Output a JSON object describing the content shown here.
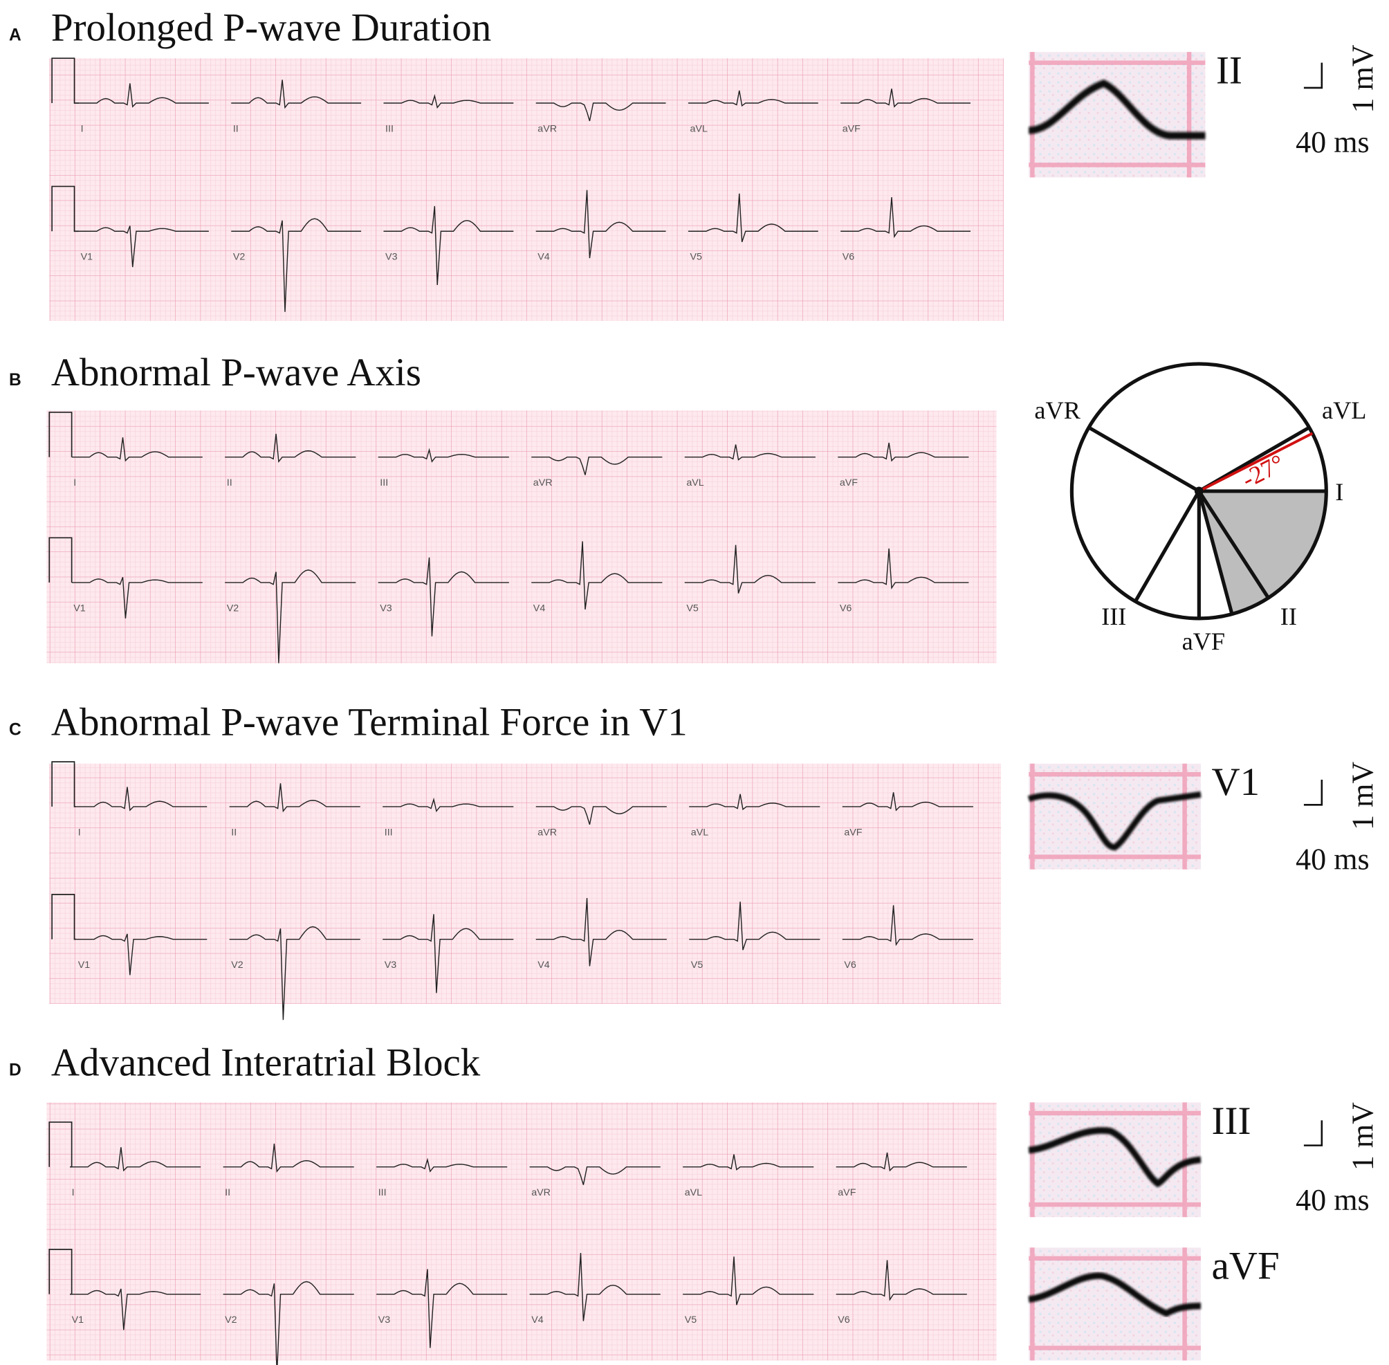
{
  "panels": [
    {
      "letter": "A",
      "title": "Prolonged P-wave Duration",
      "leads": [
        "I",
        "II",
        "III",
        "aVR",
        "aVL",
        "aVF",
        "V1",
        "V2",
        "V3",
        "V4",
        "V5",
        "V6"
      ],
      "insets": [
        {
          "label": "II"
        }
      ],
      "scale_vertical": "1 mV",
      "scale_horizontal": "40 ms"
    },
    {
      "letter": "B",
      "title": "Abnormal P-wave Axis",
      "leads": [
        "I",
        "II",
        "III",
        "aVR",
        "aVL",
        "aVF",
        "V1",
        "V2",
        "V3",
        "V4",
        "V5",
        "V6"
      ],
      "axis": {
        "leads": [
          "aVR",
          "aVL",
          "I",
          "II",
          "aVF",
          "III"
        ],
        "angle": "-27°"
      }
    },
    {
      "letter": "C",
      "title": "Abnormal P-wave Terminal Force in V1",
      "leads": [
        "I",
        "II",
        "III",
        "aVR",
        "aVL",
        "aVF",
        "V1",
        "V2",
        "V3",
        "V4",
        "V5",
        "V6"
      ],
      "insets": [
        {
          "label": "V1"
        }
      ],
      "scale_vertical": "1 mV",
      "scale_horizontal": "40 ms"
    },
    {
      "letter": "D",
      "title": "Advanced Interatrial Block",
      "leads": [
        "I",
        "II",
        "III",
        "aVR",
        "aVL",
        "aVF",
        "V1",
        "V2",
        "V3",
        "V4",
        "V5",
        "V6"
      ],
      "insets": [
        {
          "label": "III"
        },
        {
          "label": "aVF"
        }
      ],
      "scale_vertical": "1 mV",
      "scale_horizontal": "40 ms"
    }
  ]
}
